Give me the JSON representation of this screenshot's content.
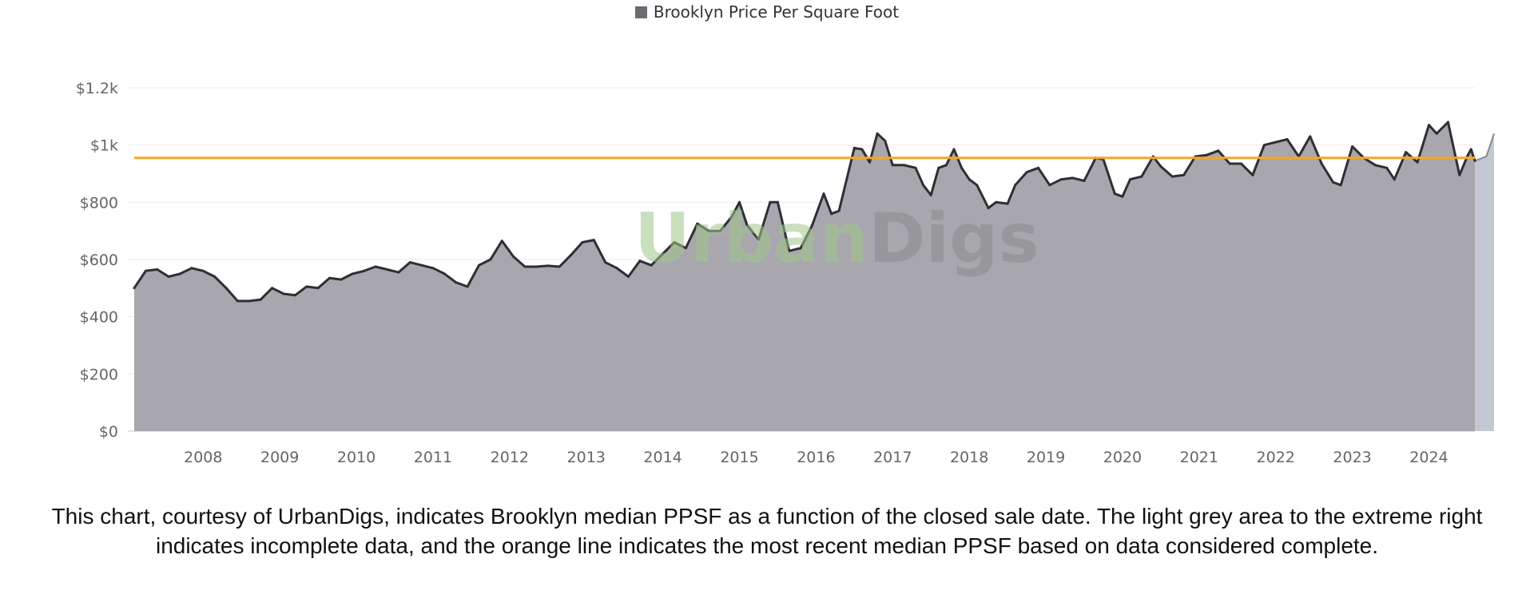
{
  "caption": "This chart, courtesy of UrbanDigs, indicates Brooklyn median PPSF as a function of the closed sale date.  The light grey area to the extreme right indicates incomplete data, and the orange line indicates the most recent median PPSF based on data considered complete.",
  "watermark": {
    "part1": "Urban",
    "part2": "Digs"
  },
  "colors": {
    "series_fill": "#a8a7ad",
    "series_line": "#2e2e36",
    "reference_line": "#f5a623",
    "incomplete_fill": "#c4c8d2",
    "watermark_green": "#9fc68a",
    "watermark_grey": "#8a8a8f"
  },
  "chart_data": {
    "type": "area",
    "legend": {
      "position": "top-center",
      "items": [
        "Brooklyn Price Per Square Foot"
      ]
    },
    "x_ticks": [
      "2008",
      "2009",
      "2010",
      "2011",
      "2012",
      "2013",
      "2014",
      "2015",
      "2016",
      "2017",
      "2018",
      "2019",
      "2020",
      "2021",
      "2022",
      "2023",
      "2024"
    ],
    "y_ticks": [
      {
        "value": 0,
        "label": "$0"
      },
      {
        "value": 200,
        "label": "$200"
      },
      {
        "value": 400,
        "label": "$400"
      },
      {
        "value": 600,
        "label": "$600"
      },
      {
        "value": 800,
        "label": "$800"
      },
      {
        "value": 1000,
        "label": "$1k"
      },
      {
        "value": 1200,
        "label": "$1.2k"
      }
    ],
    "ylim": [
      0,
      1200
    ],
    "xlim": [
      2007.6,
      2025.1
    ],
    "grid": true,
    "reference_line": {
      "y": 955
    },
    "incomplete_region": {
      "x_start": 2024.9
    },
    "series": [
      {
        "name": "Brooklyn Price Per Square Foot",
        "points": [
          [
            2007.6,
            500
          ],
          [
            2007.75,
            560
          ],
          [
            2007.9,
            565
          ],
          [
            2008.05,
            540
          ],
          [
            2008.2,
            550
          ],
          [
            2008.35,
            570
          ],
          [
            2008.5,
            560
          ],
          [
            2008.65,
            540
          ],
          [
            2008.8,
            500
          ],
          [
            2008.95,
            455
          ],
          [
            2009.1,
            455
          ],
          [
            2009.25,
            460
          ],
          [
            2009.4,
            500
          ],
          [
            2009.55,
            480
          ],
          [
            2009.7,
            475
          ],
          [
            2009.85,
            505
          ],
          [
            2010.0,
            500
          ],
          [
            2010.15,
            535
          ],
          [
            2010.3,
            530
          ],
          [
            2010.45,
            550
          ],
          [
            2010.6,
            560
          ],
          [
            2010.75,
            575
          ],
          [
            2010.9,
            565
          ],
          [
            2011.05,
            555
          ],
          [
            2011.2,
            590
          ],
          [
            2011.35,
            580
          ],
          [
            2011.5,
            570
          ],
          [
            2011.65,
            550
          ],
          [
            2011.8,
            520
          ],
          [
            2011.95,
            505
          ],
          [
            2012.1,
            580
          ],
          [
            2012.25,
            600
          ],
          [
            2012.4,
            665
          ],
          [
            2012.55,
            610
          ],
          [
            2012.7,
            575
          ],
          [
            2012.85,
            575
          ],
          [
            2013.0,
            578
          ],
          [
            2013.15,
            575
          ],
          [
            2013.3,
            615
          ],
          [
            2013.45,
            660
          ],
          [
            2013.6,
            668
          ],
          [
            2013.75,
            590
          ],
          [
            2013.9,
            570
          ],
          [
            2014.05,
            540
          ],
          [
            2014.2,
            595
          ],
          [
            2014.35,
            580
          ],
          [
            2014.5,
            620
          ],
          [
            2014.65,
            660
          ],
          [
            2014.8,
            640
          ],
          [
            2014.95,
            725
          ],
          [
            2015.1,
            700
          ],
          [
            2015.25,
            700
          ],
          [
            2015.4,
            750
          ],
          [
            2015.5,
            800
          ],
          [
            2015.6,
            720
          ],
          [
            2015.75,
            670
          ],
          [
            2015.9,
            800
          ],
          [
            2016.0,
            800
          ],
          [
            2016.15,
            630
          ],
          [
            2016.3,
            640
          ],
          [
            2016.45,
            720
          ],
          [
            2016.6,
            830
          ],
          [
            2016.7,
            760
          ],
          [
            2016.8,
            770
          ],
          [
            2016.9,
            880
          ],
          [
            2017.0,
            990
          ],
          [
            2017.1,
            985
          ],
          [
            2017.2,
            940
          ],
          [
            2017.3,
            1040
          ],
          [
            2017.4,
            1015
          ],
          [
            2017.5,
            930
          ],
          [
            2017.65,
            930
          ],
          [
            2017.8,
            920
          ],
          [
            2017.9,
            860
          ],
          [
            2018.0,
            825
          ],
          [
            2018.1,
            920
          ],
          [
            2018.2,
            930
          ],
          [
            2018.3,
            985
          ],
          [
            2018.4,
            920
          ],
          [
            2018.5,
            880
          ],
          [
            2018.6,
            860
          ],
          [
            2018.75,
            780
          ],
          [
            2018.85,
            800
          ],
          [
            2019.0,
            795
          ],
          [
            2019.1,
            860
          ],
          [
            2019.25,
            905
          ],
          [
            2019.4,
            920
          ],
          [
            2019.55,
            860
          ],
          [
            2019.7,
            880
          ],
          [
            2019.85,
            885
          ],
          [
            2020.0,
            875
          ],
          [
            2020.15,
            955
          ],
          [
            2020.25,
            950
          ],
          [
            2020.4,
            830
          ],
          [
            2020.5,
            820
          ],
          [
            2020.6,
            880
          ],
          [
            2020.75,
            890
          ],
          [
            2020.9,
            960
          ],
          [
            2021.0,
            925
          ],
          [
            2021.15,
            890
          ],
          [
            2021.3,
            895
          ],
          [
            2021.45,
            960
          ],
          [
            2021.6,
            965
          ],
          [
            2021.75,
            980
          ],
          [
            2021.9,
            935
          ],
          [
            2022.05,
            935
          ],
          [
            2022.2,
            895
          ],
          [
            2022.35,
            1000
          ],
          [
            2022.5,
            1010
          ],
          [
            2022.65,
            1020
          ],
          [
            2022.8,
            960
          ],
          [
            2022.95,
            1030
          ],
          [
            2023.1,
            935
          ],
          [
            2023.25,
            870
          ],
          [
            2023.35,
            860
          ],
          [
            2023.5,
            995
          ],
          [
            2023.65,
            955
          ],
          [
            2023.8,
            930
          ],
          [
            2023.95,
            920
          ],
          [
            2024.05,
            880
          ],
          [
            2024.2,
            975
          ],
          [
            2024.35,
            940
          ],
          [
            2024.5,
            1070
          ],
          [
            2024.6,
            1040
          ],
          [
            2024.75,
            1080
          ],
          [
            2024.9,
            895
          ],
          [
            2025.0,
            960
          ],
          [
            2025.05,
            985
          ],
          [
            2025.1,
            945
          ]
        ],
        "incomplete_points": [
          [
            2025.1,
            945
          ],
          [
            2025.25,
            960
          ],
          [
            2025.35,
            1040
          ]
        ]
      }
    ]
  }
}
